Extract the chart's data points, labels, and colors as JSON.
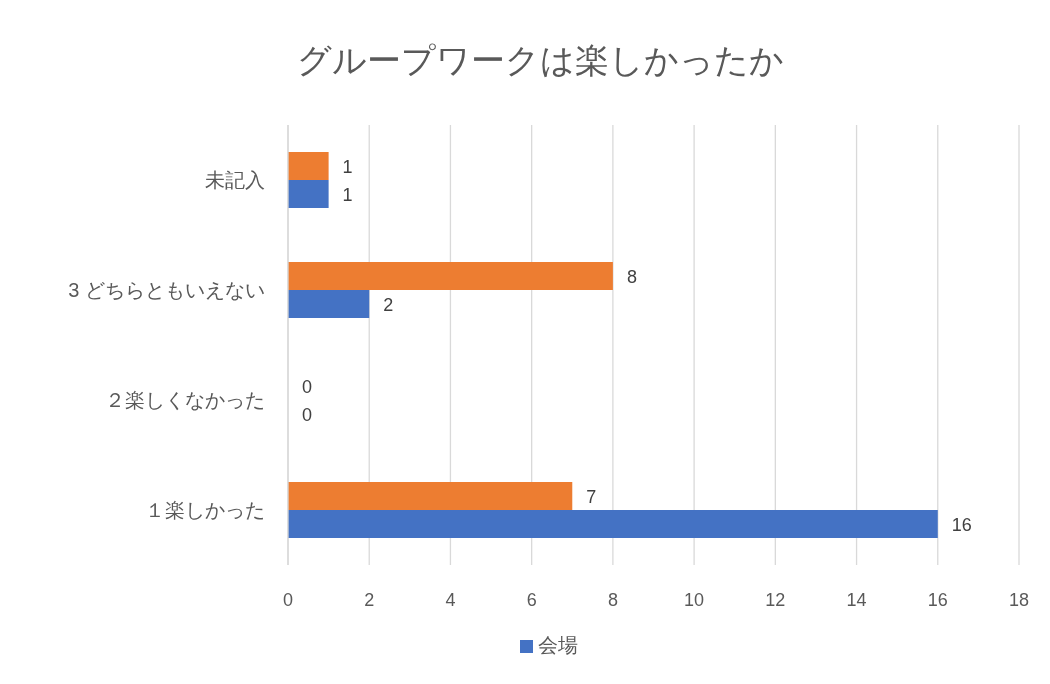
{
  "chart_data": {
    "type": "bar",
    "orientation": "horizontal",
    "title": "グループワークは楽しかったか",
    "categories": [
      "未記入",
      "3 どちらともいえない",
      "２楽しくなかった",
      "１楽しかった"
    ],
    "series": [
      {
        "color": "#ed7d31",
        "values": [
          1,
          8,
          0,
          7
        ]
      },
      {
        "name": "会場",
        "color": "#4472c4",
        "values": [
          1,
          2,
          0,
          16
        ]
      }
    ],
    "xlim": [
      0,
      18
    ],
    "xticks": [
      0,
      2,
      4,
      6,
      8,
      10,
      12,
      14,
      16,
      18
    ],
    "grid": "x",
    "legend": "bottom",
    "data_labels": true
  }
}
